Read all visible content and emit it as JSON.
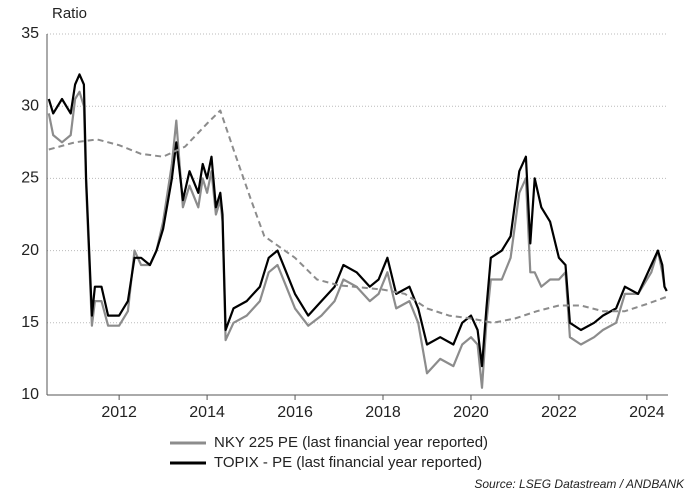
{
  "chart_data": {
    "type": "line",
    "y_label": "Ratio",
    "source": "Source: LSEG Datastream / ANDBANK",
    "xlim": [
      2010.36,
      2024.48
    ],
    "xticks": [
      2012,
      2014,
      2016,
      2018,
      2020,
      2022,
      2024
    ],
    "ylim": [
      10,
      35
    ],
    "yticks": [
      10,
      15,
      20,
      25,
      30,
      35
    ],
    "grid": true,
    "legend": "bottom",
    "series": [
      {
        "name": "NKY 225 PE (last financial year reported)",
        "color": "#8c8c8c",
        "dashed": false,
        "x": [
          2010.4,
          2010.5,
          2010.7,
          2010.9,
          2011.0,
          2011.1,
          2011.2,
          2011.25,
          2011.38,
          2011.45,
          2011.6,
          2011.75,
          2012.0,
          2012.2,
          2012.35,
          2012.5,
          2012.7,
          2012.85,
          2013.0,
          2013.2,
          2013.3,
          2013.45,
          2013.6,
          2013.8,
          2013.9,
          2014.0,
          2014.1,
          2014.2,
          2014.3,
          2014.35,
          2014.42,
          2014.6,
          2014.9,
          2015.2,
          2015.4,
          2015.6,
          2015.8,
          2016.0,
          2016.3,
          2016.6,
          2016.9,
          2017.1,
          2017.4,
          2017.7,
          2017.9,
          2018.1,
          2018.3,
          2018.6,
          2018.8,
          2019.0,
          2019.3,
          2019.6,
          2019.8,
          2020.0,
          2020.15,
          2020.25,
          2020.35,
          2020.45,
          2020.7,
          2020.9,
          2021.1,
          2021.25,
          2021.35,
          2021.45,
          2021.6,
          2021.8,
          2022.0,
          2022.15,
          2022.25,
          2022.5,
          2022.8,
          2023.0,
          2023.3,
          2023.5,
          2023.8,
          2024.1,
          2024.25,
          2024.35,
          2024.4,
          2024.45
        ],
        "values": [
          29.5,
          28,
          27.5,
          28,
          30.5,
          31,
          30,
          24.5,
          14.8,
          16.5,
          16.5,
          14.8,
          14.8,
          15.8,
          20,
          19,
          19,
          20,
          22,
          26,
          29,
          23,
          24.5,
          23,
          25,
          24,
          25.5,
          22.5,
          23.5,
          22,
          13.8,
          15,
          15.5,
          16.5,
          18.5,
          19,
          17.5,
          16,
          14.8,
          15.5,
          16.5,
          18,
          17.5,
          16.5,
          17,
          18.5,
          16,
          16.5,
          15,
          11.5,
          12.5,
          12,
          13.5,
          14,
          13.5,
          10.5,
          15,
          18,
          18,
          19.5,
          24,
          25,
          18.5,
          18.5,
          17.5,
          18,
          18,
          18.5,
          14,
          13.5,
          14,
          14.5,
          15,
          17,
          17,
          18.5,
          20,
          18.5,
          17.5,
          17.2
        ]
      },
      {
        "name": "TOPIX - PE (last financial year reported)",
        "color": "#000000",
        "dashed": false,
        "x": [
          2010.4,
          2010.5,
          2010.7,
          2010.9,
          2011.0,
          2011.1,
          2011.2,
          2011.25,
          2011.38,
          2011.45,
          2011.6,
          2011.75,
          2012.0,
          2012.2,
          2012.35,
          2012.5,
          2012.7,
          2012.85,
          2013.0,
          2013.2,
          2013.3,
          2013.45,
          2013.6,
          2013.8,
          2013.9,
          2014.0,
          2014.1,
          2014.2,
          2014.3,
          2014.35,
          2014.42,
          2014.6,
          2014.9,
          2015.2,
          2015.4,
          2015.6,
          2015.8,
          2016.0,
          2016.3,
          2016.6,
          2016.9,
          2017.1,
          2017.4,
          2017.7,
          2017.9,
          2018.1,
          2018.3,
          2018.6,
          2018.8,
          2019.0,
          2019.3,
          2019.6,
          2019.8,
          2020.0,
          2020.15,
          2020.25,
          2020.35,
          2020.45,
          2020.7,
          2020.9,
          2021.1,
          2021.25,
          2021.35,
          2021.45,
          2021.6,
          2021.8,
          2022.0,
          2022.15,
          2022.25,
          2022.5,
          2022.8,
          2023.0,
          2023.3,
          2023.5,
          2023.8,
          2024.1,
          2024.25,
          2024.35,
          2024.4,
          2024.45
        ],
        "values": [
          30.5,
          29.5,
          30.5,
          29.5,
          31.5,
          32.2,
          31.5,
          25,
          15.5,
          17.5,
          17.5,
          15.5,
          15.5,
          16.5,
          19.5,
          19.5,
          19,
          20,
          21.5,
          25,
          27.5,
          23.5,
          25.5,
          24,
          26,
          25,
          26.5,
          23,
          24,
          22.5,
          14.5,
          16,
          16.5,
          17.5,
          19.5,
          20,
          18.5,
          17,
          15.5,
          16.5,
          17.5,
          19,
          18.5,
          17.5,
          18,
          19.5,
          17,
          17.5,
          16,
          13.5,
          14,
          13.5,
          15,
          15.5,
          14.5,
          12,
          16,
          19.5,
          20,
          21,
          25.5,
          26.5,
          20.5,
          25,
          23,
          22,
          19.5,
          19,
          15,
          14.5,
          15,
          15.5,
          16,
          17.5,
          17,
          19,
          20,
          19,
          17.5,
          17.2
        ]
      },
      {
        "color": "#8c8c8c",
        "dashed": true,
        "x": [
          2010.4,
          2011.0,
          2011.5,
          2012.0,
          2012.5,
          2013.0,
          2013.5,
          2014.0,
          2014.3,
          2014.6,
          2015.0,
          2015.3,
          2016.0,
          2016.5,
          2017.0,
          2018.0,
          2018.5,
          2019.0,
          2019.5,
          2020.0,
          2020.5,
          2021.0,
          2021.5,
          2022.0,
          2022.5,
          2023.0,
          2023.5,
          2024.0,
          2024.45
        ],
        "values": [
          27,
          27.5,
          27.7,
          27.3,
          26.7,
          26.5,
          27.2,
          28.8,
          29.7,
          27,
          23.5,
          21,
          19.5,
          18,
          17.6,
          17.3,
          17,
          16,
          15.5,
          15.3,
          15,
          15.3,
          15.8,
          16.2,
          16.2,
          15.8,
          15.8,
          16.3,
          16.8
        ]
      }
    ]
  }
}
